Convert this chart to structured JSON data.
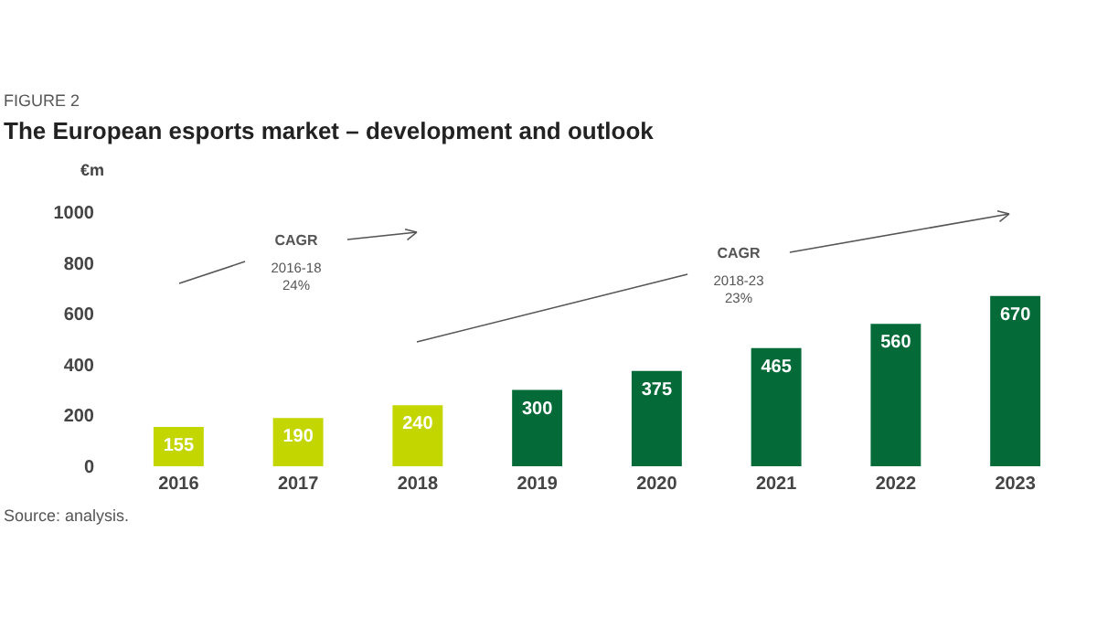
{
  "chart_data": {
    "type": "bar",
    "subtitle": "FIGURE 2",
    "title": "The European esports market – development and outlook",
    "ylabel": "€m",
    "categories": [
      "2016",
      "2017",
      "2018",
      "2019",
      "2020",
      "2021",
      "2022",
      "2023"
    ],
    "values": [
      155,
      190,
      240,
      300,
      375,
      465,
      560,
      670
    ],
    "colors": [
      "#c4d600",
      "#c4d600",
      "#c4d600",
      "#046a38",
      "#046a38",
      "#046a38",
      "#046a38",
      "#046a38"
    ],
    "ylim": [
      0,
      1000
    ],
    "yticks": [
      0,
      200,
      400,
      600,
      800,
      1000
    ],
    "grid": false,
    "legend": false,
    "data_labels": true,
    "annotations": [
      "CAGR\n2016-18\n24%",
      "CAGR\n2018-23\n23%",
      "Source: analysis."
    ]
  }
}
